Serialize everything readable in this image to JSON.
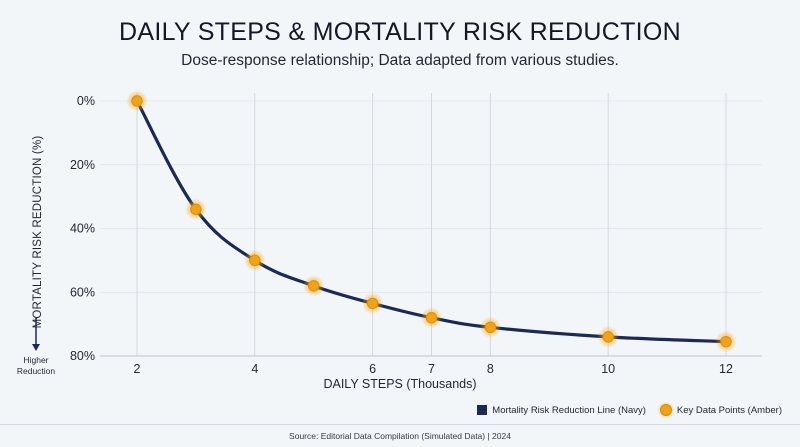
{
  "header": {
    "title": "DAILY STEPS & MORTALITY RISK REDUCTION",
    "subtitle": "Dose-response relationship; Data adapted from various studies."
  },
  "axis_notes": {
    "higher_reduction": "Higher Reduction"
  },
  "legend": {
    "line_label": "Mortality Risk Reduction Line (Navy)",
    "points_label": "Key Data Points (Amber)"
  },
  "footer": {
    "source": "Source: Editorial Data Compilation (Simulated Data) | 2024"
  },
  "colors": {
    "line": "#1b2a52",
    "points": "#f0a21a",
    "grid": "#d3d9e1",
    "background": "#f3f6f9"
  },
  "chart_data": {
    "type": "line",
    "title": "DAILY STEPS & MORTALITY RISK REDUCTION",
    "subtitle": "Dose-response relationship; Data adapted from various studies.",
    "xlabel": "DAILY STEPS (Thousands)",
    "ylabel": "MORTALITY RISK REDUCTION (%)",
    "x_ticks": [
      2,
      4,
      6,
      7,
      8,
      10,
      12
    ],
    "y_ticks": [
      "0%",
      "20%",
      "40%",
      "60%",
      "80%"
    ],
    "y_tick_values": [
      0,
      20,
      40,
      60,
      80
    ],
    "xlim": [
      2,
      12
    ],
    "ylim": [
      0,
      80
    ],
    "y_inverted": true,
    "grid": "vertical",
    "legend_position": "bottom-right",
    "series": [
      {
        "name": "Mortality Risk Reduction Line (Navy)",
        "x": [
          2,
          3,
          4,
          5,
          6,
          7,
          8,
          10,
          12
        ],
        "y": [
          0,
          34,
          50,
          58,
          63.5,
          68,
          71,
          74,
          75.5
        ]
      }
    ],
    "points": {
      "name": "Key Data Points (Amber)",
      "x": [
        2,
        3,
        4,
        5,
        6,
        7,
        8,
        10,
        12
      ],
      "y": [
        0,
        34,
        50,
        58,
        63.5,
        68,
        71,
        74,
        75.5
      ]
    }
  }
}
